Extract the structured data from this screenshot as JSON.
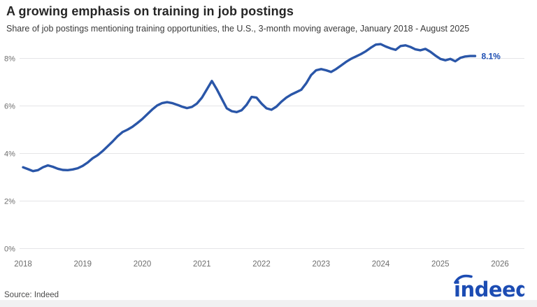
{
  "header": {
    "title": "A growing emphasis on training in job postings",
    "subtitle": "Share of job postings mentioning training opportunities, the U.S., 3-month moving average, January 2018 - August 2025"
  },
  "chart_data": {
    "type": "line",
    "title": "A growing emphasis on training in job postings",
    "subtitle": "Share of job postings mentioning training opportunities, the U.S., 3-month moving average, January 2018 - August 2025",
    "x_unit": "month",
    "x_start": "2018-01",
    "x_end": "2025-08",
    "x_tick_labels": [
      "2018",
      "2019",
      "2020",
      "2021",
      "2022",
      "2023",
      "2024",
      "2025",
      "2026"
    ],
    "y_ticks": [
      {
        "value": 0,
        "label": "0%"
      },
      {
        "value": 2,
        "label": "2%"
      },
      {
        "value": 4,
        "label": "4%"
      },
      {
        "value": 6,
        "label": "6%"
      },
      {
        "value": 8,
        "label": "8%"
      }
    ],
    "ylim": [
      0,
      9
    ],
    "grid": true,
    "legend": "none",
    "end_label": "8.1%",
    "series": [
      {
        "name": "Share of job postings mentioning training opportunities",
        "color": "#2A56A8",
        "monthly_values": [
          3.42,
          3.34,
          3.26,
          3.3,
          3.42,
          3.5,
          3.44,
          3.36,
          3.31,
          3.3,
          3.33,
          3.38,
          3.48,
          3.62,
          3.8,
          3.93,
          4.1,
          4.3,
          4.5,
          4.72,
          4.9,
          5.0,
          5.12,
          5.28,
          5.45,
          5.65,
          5.85,
          6.02,
          6.12,
          6.16,
          6.12,
          6.05,
          5.97,
          5.91,
          5.96,
          6.1,
          6.35,
          6.7,
          7.05,
          6.7,
          6.3,
          5.9,
          5.78,
          5.74,
          5.82,
          6.05,
          6.38,
          6.35,
          6.1,
          5.9,
          5.84,
          5.97,
          6.18,
          6.35,
          6.48,
          6.58,
          6.68,
          6.95,
          7.3,
          7.5,
          7.55,
          7.5,
          7.43,
          7.55,
          7.7,
          7.85,
          7.98,
          8.08,
          8.18,
          8.3,
          8.45,
          8.58,
          8.6,
          8.5,
          8.42,
          8.36,
          8.52,
          8.55,
          8.48,
          8.38,
          8.34,
          8.4,
          8.28,
          8.12,
          7.98,
          7.92,
          7.98,
          7.88,
          8.02,
          8.08,
          8.1,
          8.1
        ],
        "final_value": 8.1
      }
    ]
  },
  "footer": {
    "source": "Source: Indeed",
    "logo_text": "indeed"
  },
  "colors": {
    "accent_line": "#2A56A8",
    "end_label_blue": "#1D4EB3",
    "logo_blue": "#1C4CB3",
    "grid": "#E5E5E7",
    "axis_text": "#6E6E6E",
    "title_text": "#262626"
  }
}
